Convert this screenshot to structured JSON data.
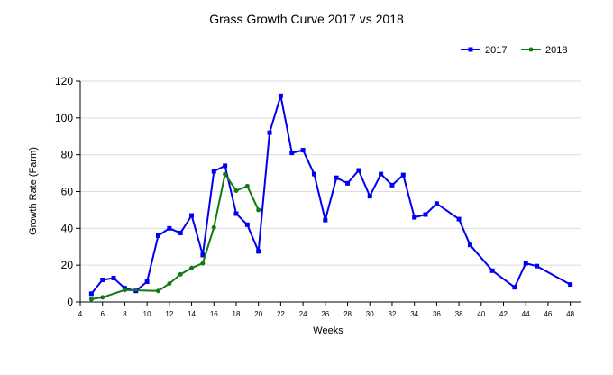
{
  "chart_data": {
    "type": "line",
    "title": "Grass Growth Curve 2017 vs 2018",
    "xlabel": "Weeks",
    "ylabel": "Growth Rate (Farm)",
    "xlim": [
      4,
      49
    ],
    "ylim": [
      0,
      120
    ],
    "x_ticks": [
      4,
      6,
      8,
      10,
      12,
      14,
      16,
      18,
      20,
      22,
      24,
      26,
      28,
      30,
      32,
      34,
      36,
      38,
      40,
      42,
      44,
      46,
      48
    ],
    "y_ticks": [
      0,
      20,
      40,
      60,
      80,
      100,
      120
    ],
    "grid": "horizontal",
    "legend_position": "top-right",
    "series": [
      {
        "name": "2017",
        "color": "#0000ee",
        "marker": "square",
        "points": [
          [
            5,
            4.5
          ],
          [
            6,
            12
          ],
          [
            7,
            13
          ],
          [
            8,
            7.5
          ],
          [
            9,
            6
          ],
          [
            10,
            11
          ],
          [
            11,
            36
          ],
          [
            12,
            40
          ],
          [
            13,
            37.5
          ],
          [
            14,
            47
          ],
          [
            15,
            25.5
          ],
          [
            16,
            71
          ],
          [
            17,
            74
          ],
          [
            18,
            48
          ],
          [
            19,
            42
          ],
          [
            20,
            27.5
          ],
          [
            21,
            92
          ],
          [
            22,
            112
          ],
          [
            23,
            81
          ],
          [
            24,
            82.5
          ],
          [
            25,
            69.5
          ],
          [
            26,
            44.5
          ],
          [
            27,
            67.5
          ],
          [
            28,
            64.5
          ],
          [
            29,
            71.5
          ],
          [
            30,
            57.5
          ],
          [
            31,
            69.5
          ],
          [
            32,
            63.5
          ],
          [
            33,
            69
          ],
          [
            34,
            46
          ],
          [
            35,
            47.5
          ],
          [
            36,
            53.5
          ],
          [
            38,
            45
          ],
          [
            39,
            31
          ],
          [
            41,
            17
          ],
          [
            43,
            8
          ],
          [
            44,
            21
          ],
          [
            45,
            19.5
          ],
          [
            48,
            9.5
          ]
        ]
      },
      {
        "name": "2018",
        "color": "#117a11",
        "marker": "circle",
        "points": [
          [
            5,
            1.5
          ],
          [
            6,
            2.5
          ],
          [
            8,
            6.5
          ],
          [
            11,
            6
          ],
          [
            12,
            10
          ],
          [
            13,
            15
          ],
          [
            14,
            18.5
          ],
          [
            15,
            21
          ],
          [
            16,
            40.5
          ],
          [
            17,
            69.5
          ],
          [
            18,
            60.5
          ],
          [
            19,
            63
          ],
          [
            20,
            50
          ]
        ]
      }
    ]
  }
}
